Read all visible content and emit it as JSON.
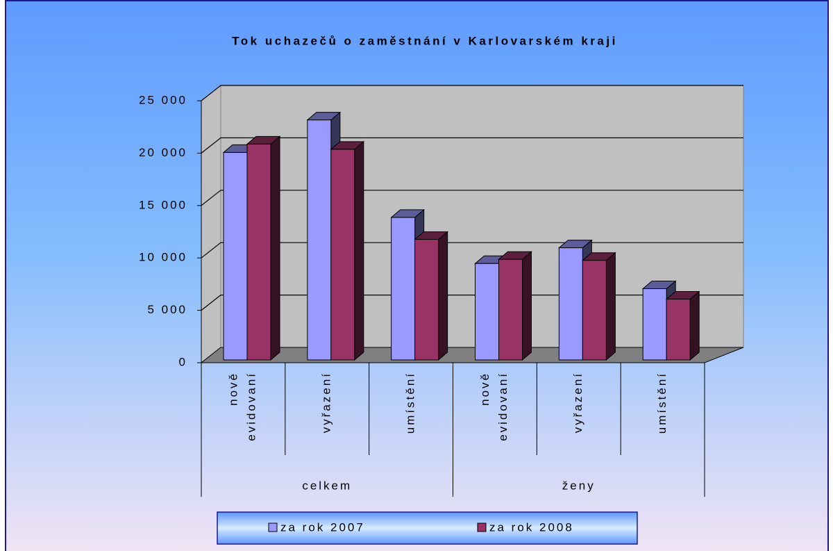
{
  "chart_data": {
    "type": "bar3d",
    "title": "Tok uchazečů o zaměstnání v Karlovarském kraji",
    "groups": [
      "celkem",
      "ženy"
    ],
    "categories": [
      "nově evidovaní",
      "vyřazení",
      "umístění",
      "nově evidovaní",
      "vyřazení",
      "umístění"
    ],
    "series": [
      {
        "name": "za rok 2007",
        "color": "#9999ff",
        "values": [
          19800,
          22900,
          13600,
          9200,
          10700,
          6800
        ]
      },
      {
        "name": "za rok 2008",
        "color": "#993366",
        "values": [
          20600,
          20100,
          11500,
          9600,
          9500,
          5800
        ]
      }
    ],
    "ylim": [
      0,
      25000
    ],
    "yticks": [
      0,
      {
        "value": 5000,
        "label": "5 000"
      },
      {
        "value": 10000,
        "label": "10 000"
      },
      {
        "value": 15000,
        "label": "15 000"
      },
      {
        "value": 20000,
        "label": "20 000"
      },
      {
        "value": 25000,
        "label": "25 000"
      }
    ],
    "grid": true,
    "legend": "bottom"
  }
}
